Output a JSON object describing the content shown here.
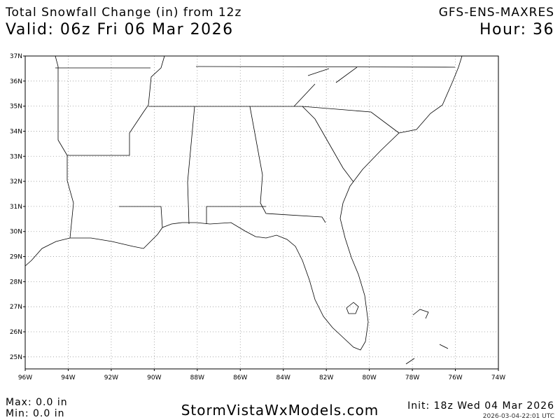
{
  "header": {
    "title": "Total Snowfall Change (in) from 12z",
    "valid": "Valid: 06z Fri 06 Mar 2026",
    "model": "GFS-ENS-MAXRES",
    "hour": "Hour: 36"
  },
  "map": {
    "lonlim": [
      -96,
      -74
    ],
    "latlim": [
      24.52,
      37
    ],
    "lat_ticks": [
      {
        "value": 37,
        "label": "37N"
      },
      {
        "value": 36,
        "label": "36N"
      },
      {
        "value": 35,
        "label": "35N"
      },
      {
        "value": 34,
        "label": "34N"
      },
      {
        "value": 33,
        "label": "33N"
      },
      {
        "value": 32,
        "label": "32N"
      },
      {
        "value": 31,
        "label": "31N"
      },
      {
        "value": 30,
        "label": "30N"
      },
      {
        "value": 29,
        "label": "29N"
      },
      {
        "value": 28,
        "label": "28N"
      },
      {
        "value": 27,
        "label": "27N"
      },
      {
        "value": 26,
        "label": "26N"
      },
      {
        "value": 25,
        "label": "25N"
      }
    ],
    "lon_ticks": [
      {
        "value": -96,
        "label": "96W"
      },
      {
        "value": -94,
        "label": "94W"
      },
      {
        "value": -92,
        "label": "92W"
      },
      {
        "value": -90,
        "label": "90W"
      },
      {
        "value": -88,
        "label": "88W"
      },
      {
        "value": -86,
        "label": "86W"
      },
      {
        "value": -84,
        "label": "84W"
      },
      {
        "value": -82,
        "label": "82W"
      },
      {
        "value": -80,
        "label": "80W"
      },
      {
        "value": -78,
        "label": "78W"
      },
      {
        "value": -76,
        "label": "76W"
      },
      {
        "value": -74,
        "label": "74W"
      }
    ]
  },
  "footer": {
    "max": "Max: 0.0 in",
    "min": "Min: 0.0 in",
    "brand": "StormVistaWxModels.com",
    "init": "Init: 18z Wed 04 Mar 2026",
    "stamp": "2026-03-04-22:01 UTC"
  }
}
